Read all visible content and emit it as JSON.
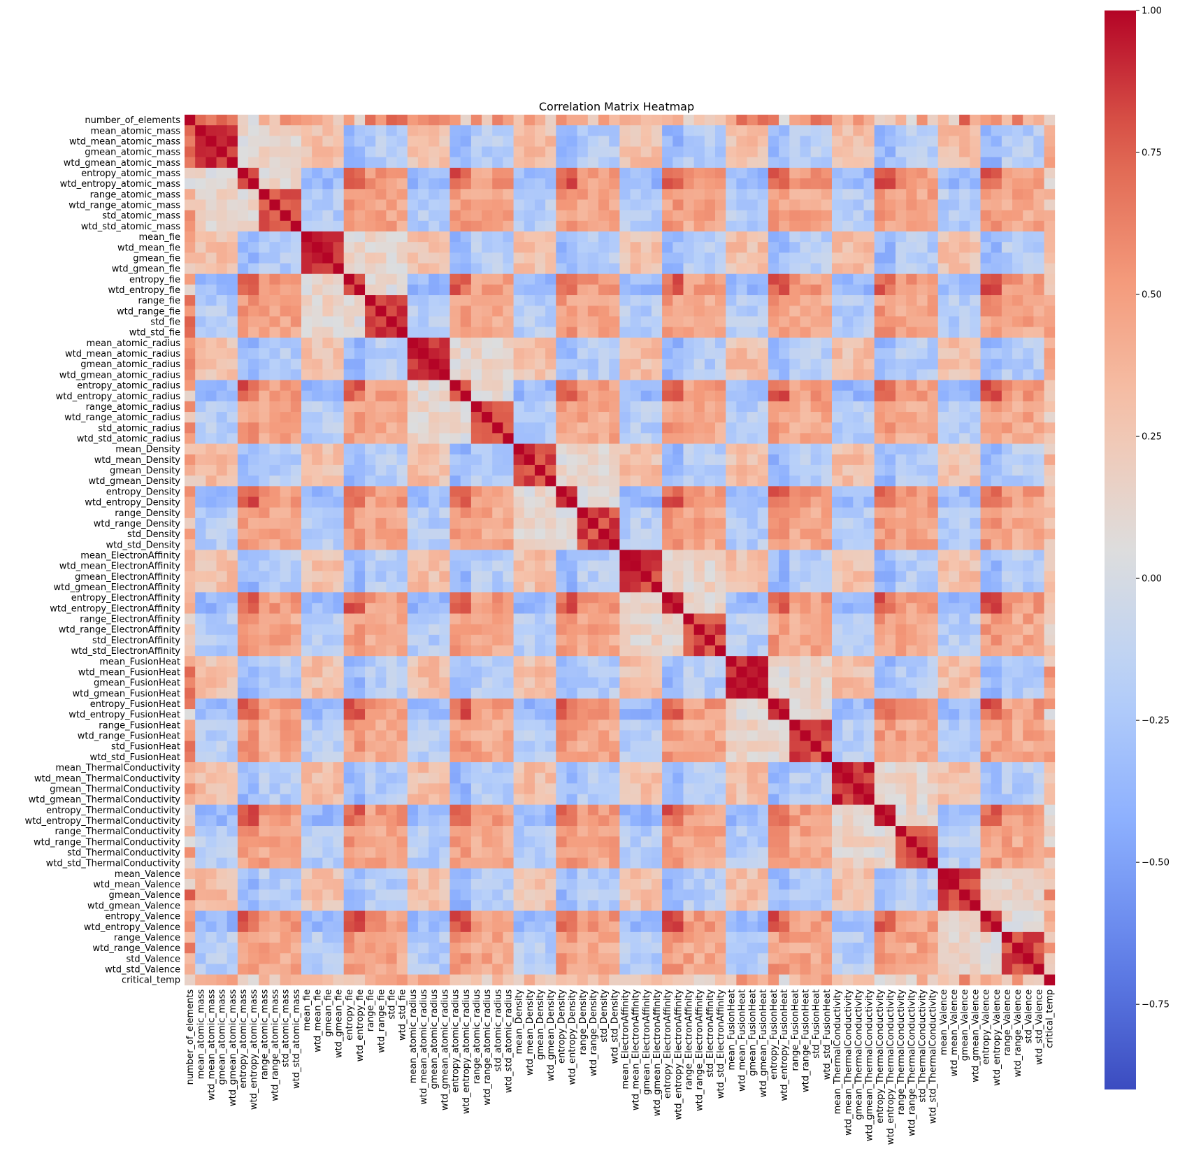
{
  "chart_data": {
    "type": "heatmap",
    "title": "Correlation Matrix Heatmap",
    "colormap": "coolwarm",
    "colorbar": {
      "min": -0.9,
      "max": 1.0,
      "ticks": [
        "1.00",
        "0.75",
        "0.50",
        "0.25",
        "0.00",
        "−0.25",
        "−0.50",
        "−0.75"
      ],
      "tick_values": [
        1.0,
        0.75,
        0.5,
        0.25,
        0.0,
        -0.25,
        -0.5,
        -0.75
      ]
    },
    "variables": [
      "number_of_elements",
      "mean_atomic_mass",
      "wtd_mean_atomic_mass",
      "gmean_atomic_mass",
      "wtd_gmean_atomic_mass",
      "entropy_atomic_mass",
      "wtd_entropy_atomic_mass",
      "range_atomic_mass",
      "wtd_range_atomic_mass",
      "std_atomic_mass",
      "wtd_std_atomic_mass",
      "mean_fie",
      "wtd_mean_fie",
      "gmean_fie",
      "wtd_gmean_fie",
      "entropy_fie",
      "wtd_entropy_fie",
      "range_fie",
      "wtd_range_fie",
      "std_fie",
      "wtd_std_fie",
      "mean_atomic_radius",
      "wtd_mean_atomic_radius",
      "gmean_atomic_radius",
      "wtd_gmean_atomic_radius",
      "entropy_atomic_radius",
      "wtd_entropy_atomic_radius",
      "range_atomic_radius",
      "wtd_range_atomic_radius",
      "std_atomic_radius",
      "wtd_std_atomic_radius",
      "mean_Density",
      "wtd_mean_Density",
      "gmean_Density",
      "wtd_gmean_Density",
      "entropy_Density",
      "wtd_entropy_Density",
      "range_Density",
      "wtd_range_Density",
      "std_Density",
      "wtd_std_Density",
      "mean_ElectronAffinity",
      "wtd_mean_ElectronAffinity",
      "gmean_ElectronAffinity",
      "wtd_gmean_ElectronAffinity",
      "entropy_ElectronAffinity",
      "wtd_entropy_ElectronAffinity",
      "range_ElectronAffinity",
      "wtd_range_ElectronAffinity",
      "std_ElectronAffinity",
      "wtd_std_ElectronAffinity",
      "mean_FusionHeat",
      "wtd_mean_FusionHeat",
      "gmean_FusionHeat",
      "wtd_gmean_FusionHeat",
      "entropy_FusionHeat",
      "wtd_entropy_FusionHeat",
      "range_FusionHeat",
      "wtd_range_FusionHeat",
      "std_FusionHeat",
      "wtd_std_FusionHeat",
      "mean_ThermalConductivity",
      "wtd_mean_ThermalConductivity",
      "gmean_ThermalConductivity",
      "wtd_gmean_ThermalConductivity",
      "entropy_ThermalConductivity",
      "wtd_entropy_ThermalConductivity",
      "range_ThermalConductivity",
      "wtd_range_ThermalConductivity",
      "std_ThermalConductivity",
      "wtd_std_ThermalConductivity",
      "mean_Valence",
      "wtd_mean_Valence",
      "gmean_Valence",
      "wtd_gmean_Valence",
      "entropy_Valence",
      "wtd_entropy_Valence",
      "range_Valence",
      "wtd_range_Valence",
      "std_Valence",
      "wtd_std_Valence",
      "critical_temp"
    ],
    "matrix_note": "82x82 symmetric correlation matrix; diagonal = 1.0",
    "matrix_values": [
      [
        1.0,
        0.73,
        0.64,
        0.76,
        0.66,
        0.18,
        0.02,
        0.43,
        0.24,
        0.6,
        0.55,
        0.5,
        0.46,
        0.36,
        0.19,
        0.51,
        0.12,
        0.71,
        0.52,
        0.76,
        0.72,
        0.52,
        0.58,
        0.63,
        0.59,
        0.53,
        0.14,
        0.6,
        0.22,
        0.63,
        0.49,
        0.27,
        0.55,
        0.41,
        0.17,
        0.58,
        0.44,
        0.44,
        0.19,
        0.53,
        0.34,
        0.44,
        0.41,
        0.32,
        0.34,
        0.37,
        0.43,
        0.12,
        0.28,
        0.21,
        0.26,
        0.43,
        0.73,
        0.6,
        0.72,
        0.67,
        0.05,
        0.46,
        0.51,
        0.71,
        0.65,
        0.43,
        0.34,
        0.57,
        0.41,
        0.15,
        0.2,
        0.4,
        0.05,
        0.57,
        0.18,
        0.35,
        0.13,
        0.78,
        0.4,
        0.51,
        0.58,
        0.31,
        0.68,
        0.33,
        0.41,
        0.16
      ]
    ]
  }
}
